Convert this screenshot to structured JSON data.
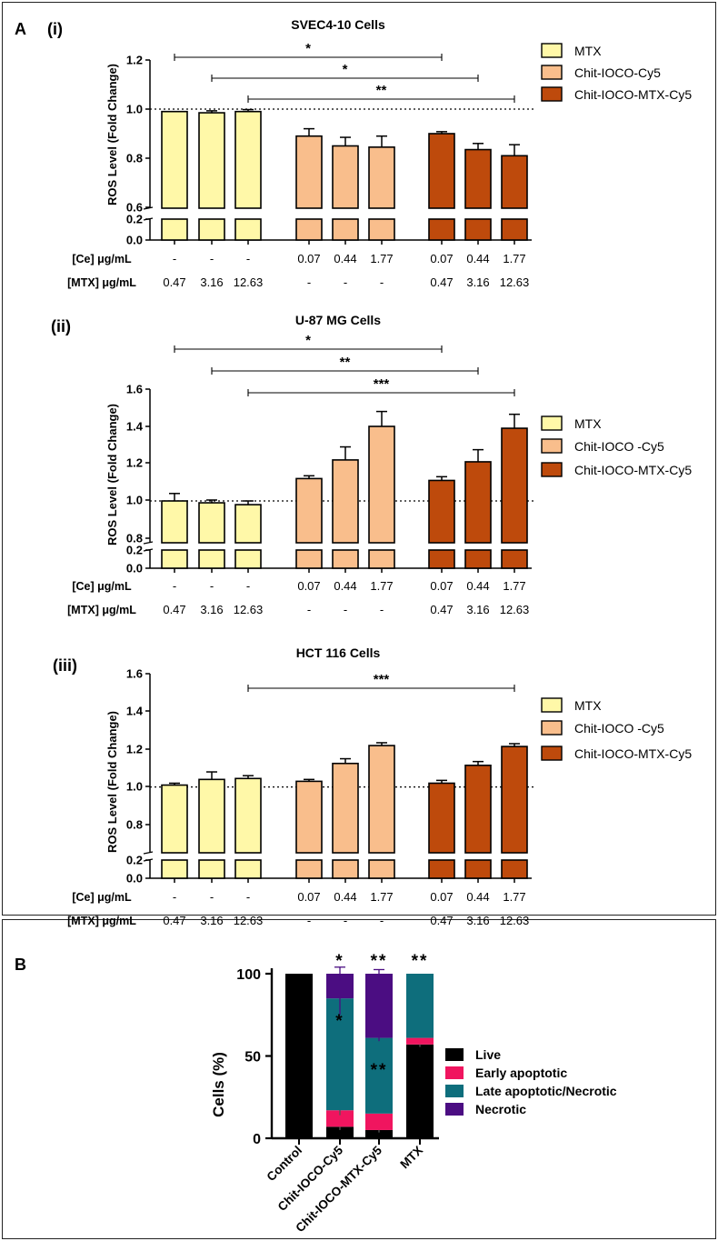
{
  "panelA": {
    "letter": "A",
    "conditions": {
      "ce_label": "[Ce] μg/mL",
      "mtx_label": "[MTX] μg/mL",
      "ce_values": [
        "-",
        "-",
        "-",
        "0.07",
        "0.44",
        "1.77",
        "0.07",
        "0.44",
        "1.77"
      ],
      "mtx_values": [
        "0.47",
        "3.16",
        "12.63",
        "-",
        "-",
        "-",
        "0.47",
        "3.16",
        "12.63"
      ]
    }
  },
  "panelB": {
    "letter": "B"
  },
  "colors": {
    "mtx": "#FFF8A8",
    "chit": "#F9BE8C",
    "chitmtx": "#BE4A0C",
    "live": "#000000",
    "early": "#F0155F",
    "late": "#0E6E7C",
    "necrotic": "#4B0D82"
  },
  "chart_data": [
    {
      "type": "bar",
      "label": "(i)",
      "title": "SVEC4-10 Cells",
      "ylabel": "ROS Level (Fold Change)",
      "ylim": [
        0,
        1.2
      ],
      "axis_break": [
        0.2,
        0.6
      ],
      "yticks": [
        "0.0",
        "0.2",
        "0.6",
        "0.8",
        "1.0",
        "1.2"
      ],
      "reference_line": 1.0,
      "groups": [
        {
          "name": "MTX",
          "values": [
            0.99,
            0.985,
            0.99
          ],
          "errors": [
            0.0,
            0.008,
            0.008
          ]
        },
        {
          "name": "Chit-IOCO-Cy5",
          "values": [
            0.89,
            0.85,
            0.845
          ],
          "errors": [
            0.03,
            0.035,
            0.045
          ]
        },
        {
          "name": "Chit-IOCO-MTX-Cy5",
          "values": [
            0.9,
            0.835,
            0.81
          ],
          "errors": [
            0.008,
            0.025,
            0.045
          ]
        }
      ],
      "legend": [
        "MTX",
        "Chit-IOCO-Cy5",
        "Chit-IOCO-MTX-Cy5"
      ],
      "significance": [
        {
          "from_bar": 0,
          "to_bar": 6,
          "label": "*"
        },
        {
          "from_bar": 1,
          "to_bar": 7,
          "label": "*"
        },
        {
          "from_bar": 2,
          "to_bar": 8,
          "label": "**"
        }
      ]
    },
    {
      "type": "bar",
      "label": "(ii)",
      "title": "U-87 MG Cells",
      "ylabel": "ROS Level (Fold Change)",
      "ylim": [
        0,
        1.6
      ],
      "axis_break": [
        0.2,
        0.8
      ],
      "yticks": [
        "0.0",
        "0.2",
        "0.8",
        "1.0",
        "1.2",
        "1.4",
        "1.6"
      ],
      "reference_line": 1.0,
      "groups": [
        {
          "name": "MTX",
          "values": [
            1.0,
            0.99,
            0.98
          ],
          "errors": [
            0.04,
            0.015,
            0.02
          ]
        },
        {
          "name": "Chit-IOCO -Cy5",
          "values": [
            1.12,
            1.22,
            1.4
          ],
          "errors": [
            0.015,
            0.07,
            0.08
          ]
        },
        {
          "name": "Chit-IOCO-MTX-Cy5",
          "values": [
            1.11,
            1.21,
            1.39
          ],
          "errors": [
            0.02,
            0.065,
            0.075
          ]
        }
      ],
      "legend": [
        "MTX",
        "Chit-IOCO -Cy5",
        "Chit-IOCO-MTX-Cy5"
      ],
      "significance": [
        {
          "from_bar": 0,
          "to_bar": 6,
          "label": "*"
        },
        {
          "from_bar": 1,
          "to_bar": 7,
          "label": "**"
        },
        {
          "from_bar": 2,
          "to_bar": 8,
          "label": "***"
        }
      ]
    },
    {
      "type": "bar",
      "label": "(iii)",
      "title": "HCT 116 Cells",
      "ylabel": "ROS Level (Fold Change)",
      "ylim": [
        0,
        1.6
      ],
      "axis_break": [
        0.2,
        0.8
      ],
      "yticks": [
        "0.0",
        "0.2",
        "0.8",
        "1.0",
        "1.2",
        "1.4",
        "1.6"
      ],
      "reference_line": 1.0,
      "groups": [
        {
          "name": "MTX",
          "values": [
            1.01,
            1.04,
            1.045
          ],
          "errors": [
            0.01,
            0.04,
            0.015
          ]
        },
        {
          "name": "Chit-IOCO -Cy5",
          "values": [
            1.03,
            1.125,
            1.22
          ],
          "errors": [
            0.01,
            0.025,
            0.015
          ]
        },
        {
          "name": "Chit-IOCO-MTX-Cy5",
          "values": [
            1.02,
            1.115,
            1.215
          ],
          "errors": [
            0.015,
            0.02,
            0.015
          ]
        }
      ],
      "legend": [
        "MTX",
        "Chit-IOCO -Cy5",
        "Chit-IOCO-MTX-Cy5"
      ],
      "significance": [
        {
          "from_bar": 2,
          "to_bar": 8,
          "label": "***"
        }
      ]
    },
    {
      "type": "bar",
      "stacked": true,
      "title": "",
      "ylabel": "Cells (%)",
      "ylim": [
        0,
        100
      ],
      "yticks": [
        "0",
        "50",
        "100"
      ],
      "categories": [
        "Control",
        "Chit-IOCO-Cy5",
        "Chit-IOCO-MTX-Cy5",
        "MTX"
      ],
      "series": [
        {
          "name": "Live",
          "values": [
            100,
            7,
            5,
            57
          ],
          "errors": [
            0,
            2,
            1.5,
            1.5
          ]
        },
        {
          "name": "Early apoptotic",
          "values": [
            0,
            10,
            10,
            4
          ],
          "errors": [
            0,
            3,
            0,
            0
          ]
        },
        {
          "name": "Late apoptotic/Necrotic",
          "values": [
            0,
            68,
            46,
            39
          ],
          "errors": [
            0,
            10,
            2,
            0
          ]
        },
        {
          "name": "Necrotic",
          "values": [
            0,
            15,
            39,
            0
          ],
          "errors": [
            0,
            4,
            2.5,
            0
          ]
        }
      ],
      "legend": [
        "Live",
        "Early apoptotic",
        "Late apoptotic/Necrotic",
        "Necrotic"
      ],
      "top_significance": [
        "",
        "*",
        "**",
        "**"
      ],
      "inner_significance": [
        "",
        "*",
        "**",
        ""
      ]
    }
  ]
}
